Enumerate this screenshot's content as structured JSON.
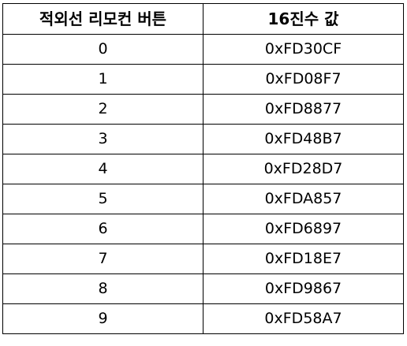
{
  "table": {
    "headers": [
      "적외선 리모컨 버튼",
      "16진수 값"
    ],
    "rows": [
      [
        "0",
        "0xFD30CF"
      ],
      [
        "1",
        "0xFD08F7"
      ],
      [
        "2",
        "0xFD8877"
      ],
      [
        "3",
        "0xFD48B7"
      ],
      [
        "4",
        "0xFD28D7"
      ],
      [
        "5",
        "0xFDA857"
      ],
      [
        "6",
        "0xFD6897"
      ],
      [
        "7",
        "0xFD18E7"
      ],
      [
        "8",
        "0xFD9867"
      ],
      [
        "9",
        "0xFD58A7"
      ]
    ]
  }
}
